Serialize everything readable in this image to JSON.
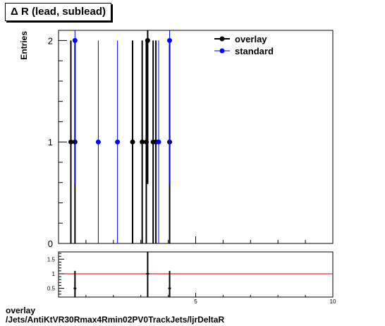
{
  "title": "Δ R (lead, sublead)",
  "footer": {
    "line1": "overlay",
    "line2": "/Jets/AntiKtVR30Rmax4Rmin02PV0TrackJets/ljrDeltaR"
  },
  "colors": {
    "overlay": "#000000",
    "standard": "#0000ff",
    "ratio_line": "#cc0000"
  },
  "chart_data": [
    {
      "type": "scatter",
      "ylabel": "Entries",
      "xlim": [
        0,
        10
      ],
      "ylim": [
        0,
        2.1
      ],
      "y_ticks": [
        0,
        1,
        2
      ],
      "legend_position": "top-right",
      "series": [
        {
          "name": "overlay",
          "points": [
            {
              "x": 0.45,
              "y": 1
            },
            {
              "x": 0.6,
              "y": 1
            },
            {
              "x": 2.7,
              "y": 1
            },
            {
              "x": 3.05,
              "y": 1
            },
            {
              "x": 3.2,
              "y": 1
            },
            {
              "x": 3.25,
              "y": 2
            },
            {
              "x": 3.45,
              "y": 1
            },
            {
              "x": 3.55,
              "y": 1
            },
            {
              "x": 4.05,
              "y": 1
            }
          ]
        },
        {
          "name": "standard",
          "points": [
            {
              "x": 0.6,
              "y": 2
            },
            {
              "x": 1.45,
              "y": 1
            },
            {
              "x": 2.15,
              "y": 1
            },
            {
              "x": 3.65,
              "y": 1
            },
            {
              "x": 4.05,
              "y": 2
            }
          ]
        }
      ]
    },
    {
      "type": "scatter",
      "xlim": [
        0,
        10
      ],
      "ylim": [
        0.2,
        1.75
      ],
      "x_ticks": [
        5,
        10
      ],
      "y_ticks": [
        0.5,
        1,
        1.5
      ],
      "reference_line": 1,
      "points": [
        {
          "x": 0.6,
          "y": 0.5,
          "err": 0.6
        },
        {
          "x": 3.25,
          "y": 1.0,
          "err": 1.0
        },
        {
          "x": 4.05,
          "y": 0.5,
          "err": 0.6
        }
      ]
    }
  ]
}
